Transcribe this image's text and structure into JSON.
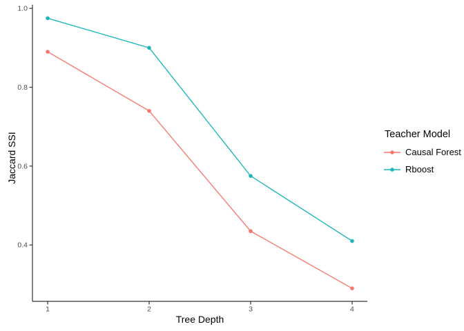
{
  "figure": {
    "background": "#FFFFFF"
  },
  "chart_data": {
    "type": "line",
    "title": "",
    "x": [
      1,
      2,
      3,
      4
    ],
    "xticks": [
      1,
      2,
      3,
      4
    ],
    "yticks": [
      0.4,
      0.6,
      0.8,
      1.0
    ],
    "xlim": [
      0.85,
      4.15
    ],
    "ylim": [
      0.257,
      1.009
    ],
    "grid": false,
    "xlabel": "Tree Depth",
    "ylabel": "Jaccard SSI",
    "series": [
      {
        "name": "Causal Forest",
        "color": "#F8766D",
        "values": [
          0.89,
          0.74,
          0.435,
          0.29
        ]
      },
      {
        "name": "Rboost",
        "color": "#1AB6B9",
        "values": [
          0.975,
          0.9,
          0.575,
          0.41
        ]
      }
    ],
    "legend": {
      "title": "Teacher Model",
      "position": "right"
    },
    "style": {
      "axis_color": "#333333",
      "tick_label_color": "#4D4D4D",
      "point_marker": "circle"
    }
  }
}
